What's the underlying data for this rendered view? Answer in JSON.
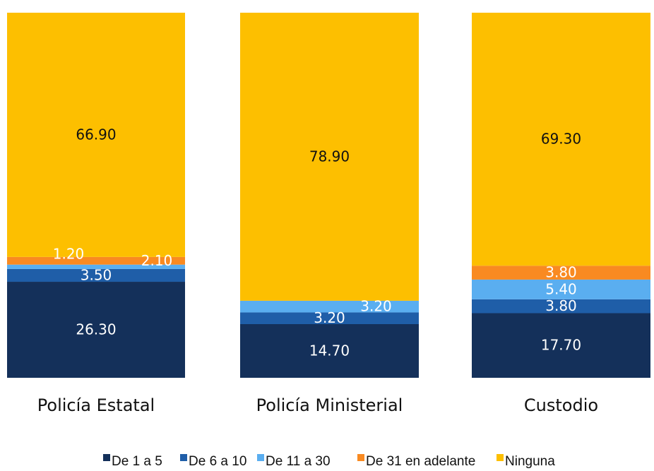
{
  "chart_data": {
    "type": "stacked-bar",
    "categories": [
      "Policía Estatal",
      "Policía Ministerial",
      "Custodio"
    ],
    "series": [
      {
        "name": "De 1 a 5",
        "color": "#14305a",
        "values": [
          26.3,
          14.7,
          17.7
        ],
        "value_labels": [
          "26.30",
          "14.70",
          "17.70"
        ]
      },
      {
        "name": "De 6 a 10",
        "color": "#1f5ea8",
        "values": [
          3.5,
          3.2,
          3.8
        ],
        "value_labels": [
          "3.50",
          "3.20",
          "3.80"
        ]
      },
      {
        "name": "De 11 a 30",
        "color": "#5aaef0",
        "values": [
          1.2,
          3.2,
          5.4
        ],
        "value_labels": [
          "1.20",
          "3.20",
          "5.40"
        ]
      },
      {
        "name": "De 31 en adelante",
        "color": "#f98a21",
        "values": [
          2.1,
          null,
          3.8
        ],
        "value_labels": [
          "2.10",
          null,
          "3.80"
        ]
      },
      {
        "name": "Ninguna",
        "color": "#fdbf00",
        "values": [
          66.9,
          78.9,
          69.3
        ],
        "value_labels": [
          "66.90",
          "78.90",
          "69.30"
        ]
      }
    ]
  }
}
